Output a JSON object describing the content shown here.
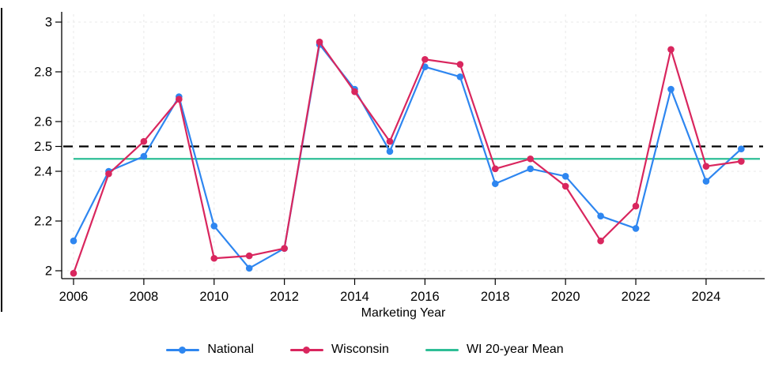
{
  "chart_data": {
    "type": "line",
    "xlabel": "Marketing Year",
    "x": [
      2006,
      2007,
      2008,
      2009,
      2010,
      2011,
      2012,
      2013,
      2014,
      2015,
      2016,
      2017,
      2018,
      2019,
      2020,
      2021,
      2022,
      2023,
      2024,
      2025
    ],
    "series": [
      {
        "name": "National",
        "color": "#2E86F0",
        "values": [
          2.12,
          2.4,
          2.46,
          2.7,
          2.18,
          2.01,
          2.09,
          2.91,
          2.73,
          2.48,
          2.82,
          2.78,
          2.35,
          2.41,
          2.38,
          2.22,
          2.17,
          2.73,
          2.36,
          2.49
        ]
      },
      {
        "name": "Wisconsin",
        "color": "#D9265E",
        "values": [
          1.99,
          2.39,
          2.52,
          2.69,
          2.05,
          2.06,
          2.09,
          2.92,
          2.72,
          2.52,
          2.85,
          2.83,
          2.41,
          2.45,
          2.34,
          2.12,
          2.26,
          2.89,
          2.42,
          2.44
        ]
      }
    ],
    "mean_line": {
      "label": "WI 20-year Mean",
      "value": 2.45,
      "color": "#2EBE96"
    },
    "reference_line": {
      "value": 2.5,
      "color": "#000000",
      "style": "dashed"
    },
    "y_ticks": [
      {
        "value": 2,
        "label": "2",
        "grid": true
      },
      {
        "value": 2.2,
        "label": "2.2",
        "grid": true
      },
      {
        "value": 2.4,
        "label": "2.4",
        "grid": true
      },
      {
        "value": 2.5,
        "label": "2.5",
        "grid": false
      },
      {
        "value": 2.6,
        "label": "2.6",
        "grid": true
      },
      {
        "value": 2.8,
        "label": "2.8",
        "grid": true
      },
      {
        "value": 3,
        "label": "3",
        "grid": true
      }
    ],
    "x_ticks": [
      2006,
      2008,
      2010,
      2012,
      2014,
      2016,
      2018,
      2020,
      2022,
      2024
    ],
    "ylim": [
      2,
      3
    ],
    "grid": true,
    "legend_position": "bottom"
  }
}
